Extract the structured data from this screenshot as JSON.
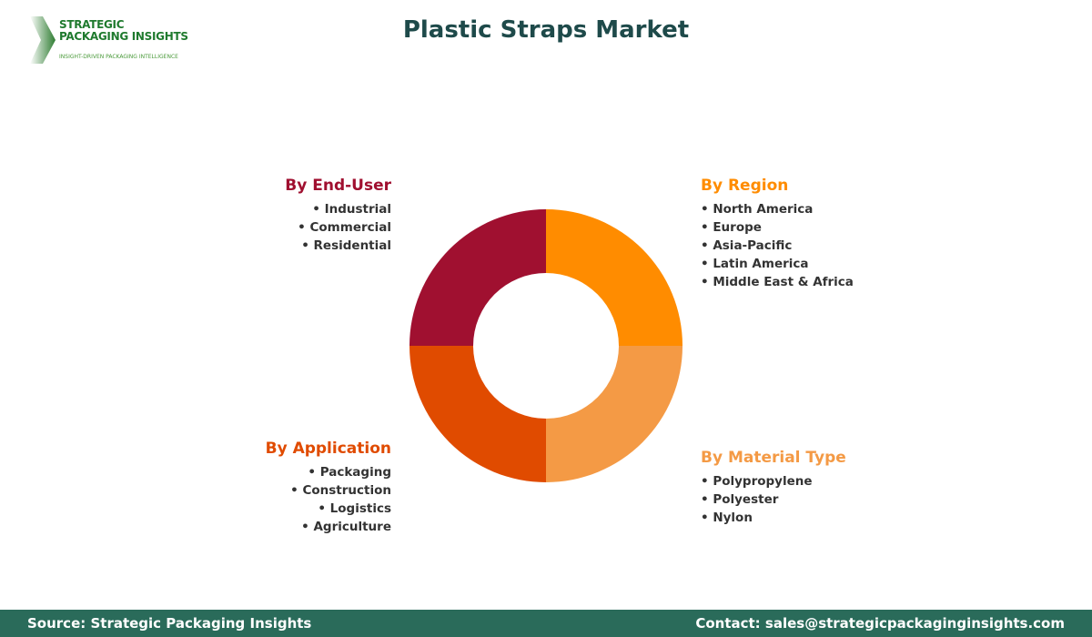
{
  "logo": {
    "line1": "STRATEGIC",
    "line2": "PACKAGING INSIGHTS",
    "tagline": "INSIGHT-DRIVEN PACKAGING INTELLIGENCE"
  },
  "title": "Plastic Straps Market",
  "segments": [
    {
      "key": "region",
      "title": "By Region",
      "color": "#FF8C00",
      "share": 25,
      "items": [
        "North America",
        "Europe",
        "Asia-Pacific",
        "Latin America",
        "Middle East & Africa"
      ]
    },
    {
      "key": "material",
      "title": "By Material Type",
      "color": "#F49A45",
      "share": 25,
      "items": [
        "Polypropylene",
        "Polyester",
        "Nylon"
      ]
    },
    {
      "key": "application",
      "title": "By Application",
      "color": "#E04B00",
      "share": 25,
      "items": [
        "Packaging",
        "Construction",
        "Logistics",
        "Agriculture"
      ]
    },
    {
      "key": "enduser",
      "title": "By End-User",
      "color": "#A01030",
      "share": 25,
      "items": [
        "Industrial",
        "Commercial",
        "Residential"
      ]
    }
  ],
  "footer": {
    "source": "Source: Strategic Packaging Insights",
    "contact": "Contact: sales@strategicpackaginginsights.com"
  }
}
